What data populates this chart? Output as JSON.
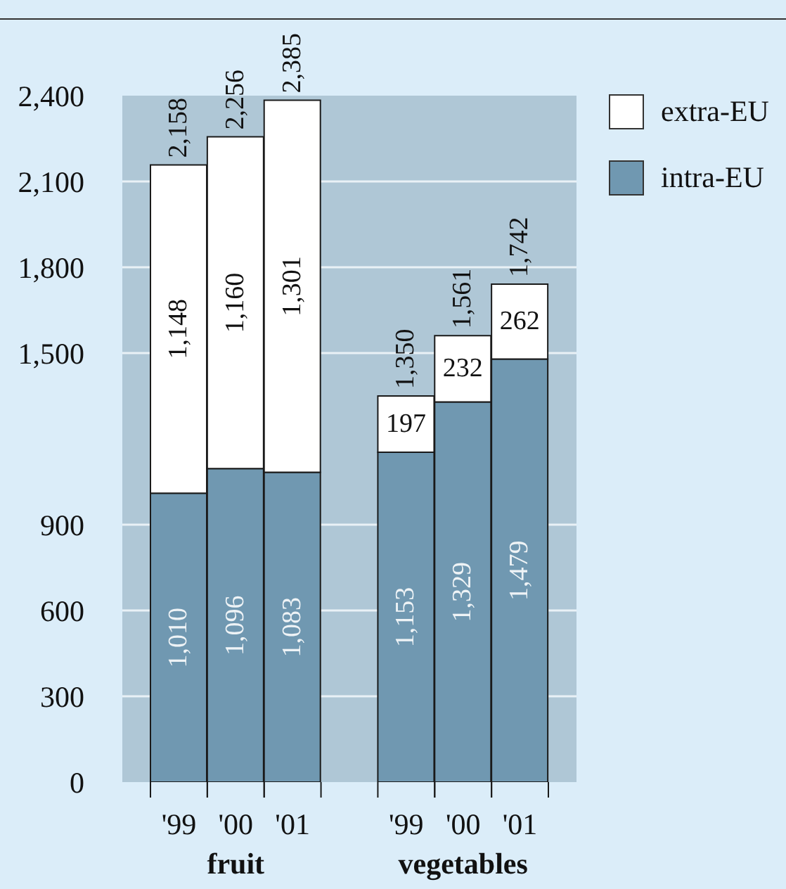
{
  "chart_data": {
    "type": "bar",
    "stacked": true,
    "categories": [
      "'99",
      "'00",
      "'01",
      null,
      "'99",
      "'00",
      "'01"
    ],
    "series": [
      {
        "name": "intra-EU",
        "color": "#7098b1",
        "values": [
          1010,
          1096,
          1083,
          null,
          1153,
          1329,
          1479
        ],
        "value_labels": [
          "1,010",
          "1,096",
          "1,083",
          null,
          "1,153",
          "1,329",
          "1,479"
        ]
      },
      {
        "name": "extra-EU",
        "color": "#ffffff",
        "values": [
          1148,
          1160,
          1301,
          null,
          197,
          232,
          262
        ],
        "value_labels": [
          "1,148",
          "1,160",
          "1,301",
          null,
          "197",
          "232",
          "262"
        ]
      }
    ],
    "totals": [
      "2,158",
      "2,256",
      "2,385",
      null,
      "1,350",
      "1,561",
      "1,742"
    ],
    "ylim": [
      0,
      2400
    ],
    "yticks": [
      0,
      300,
      600,
      900,
      {
        "value": 1500,
        "label": "1,500"
      },
      {
        "value": 1800,
        "label": "1,800"
      },
      {
        "value": 2100,
        "label": "2,100"
      },
      {
        "value": 2400,
        "label": "2,400"
      }
    ],
    "grid": "y",
    "legend": "top right",
    "annotations": [
      "fruit",
      "vegetables"
    ]
  }
}
